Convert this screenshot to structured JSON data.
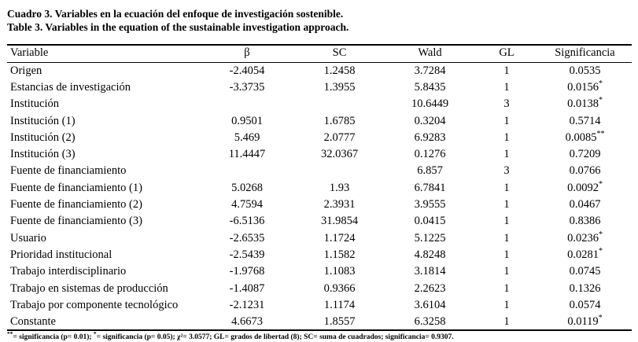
{
  "captions": {
    "spanish": "Cuadro 3. Variables en la ecuación del enfoque de investigación sostenible.",
    "english": "Table 3. Variables in the equation of the sustainable investigation approach."
  },
  "table": {
    "headers": {
      "variable": "Variable",
      "beta": "β",
      "sc": "SC",
      "wald": "Wald",
      "gl": "GL",
      "sig": "Significancia"
    },
    "rows": [
      {
        "variable": "Origen",
        "beta": "-2.4054",
        "sc": "1.2458",
        "wald": "3.7284",
        "gl": "1",
        "sig": "0.0535",
        "mark": ""
      },
      {
        "variable": "Estancias de investigación",
        "beta": "-3.3735",
        "sc": "1.3955",
        "wald": "5.8435",
        "gl": "1",
        "sig": "0.0156",
        "mark": "*"
      },
      {
        "variable": "Institución",
        "beta": "",
        "sc": "",
        "wald": "10.6449",
        "gl": "3",
        "sig": "0.0138",
        "mark": "*"
      },
      {
        "variable": "Institución (1)",
        "beta": "0.9501",
        "sc": "1.6785",
        "wald": "0.3204",
        "gl": "1",
        "sig": "0.5714",
        "mark": ""
      },
      {
        "variable": "Institución (2)",
        "beta": "5.469",
        "sc": "2.0777",
        "wald": "6.9283",
        "gl": "1",
        "sig": "0.0085",
        "mark": "**"
      },
      {
        "variable": "Institución (3)",
        "beta": "11.4447",
        "sc": "32.0367",
        "wald": "0.1276",
        "gl": "1",
        "sig": "0.7209",
        "mark": ""
      },
      {
        "variable": "Fuente de financiamiento",
        "beta": "",
        "sc": "",
        "wald": "6.857",
        "gl": "3",
        "sig": "0.0766",
        "mark": ""
      },
      {
        "variable": "Fuente de financiamiento (1)",
        "beta": "5.0268",
        "sc": "1.93",
        "wald": "6.7841",
        "gl": "1",
        "sig": "0.0092",
        "mark": "*"
      },
      {
        "variable": "Fuente de financiamiento (2)",
        "beta": "4.7594",
        "sc": "2.3931",
        "wald": "3.9555",
        "gl": "1",
        "sig": "0.0467",
        "mark": ""
      },
      {
        "variable": "Fuente de financiamiento (3)",
        "beta": "-6.5136",
        "sc": "31.9854",
        "wald": "0.0415",
        "gl": "1",
        "sig": "0.8386",
        "mark": ""
      },
      {
        "variable": "Usuario",
        "beta": "-2.6535",
        "sc": "1.1724",
        "wald": "5.1225",
        "gl": "1",
        "sig": "0.0236",
        "mark": "*"
      },
      {
        "variable": "Prioridad institucional",
        "beta": "-2.5439",
        "sc": "1.1582",
        "wald": "4.8248",
        "gl": "1",
        "sig": "0.0281",
        "mark": "*"
      },
      {
        "variable": "Trabajo interdisciplinario",
        "beta": "-1.9768",
        "sc": "1.1083",
        "wald": "3.1814",
        "gl": "1",
        "sig": "0.0745",
        "mark": ""
      },
      {
        "variable": "Trabajo en sistemas de producción",
        "beta": "-1.4087",
        "sc": "0.9366",
        "wald": "2.2623",
        "gl": "1",
        "sig": "0.1326",
        "mark": ""
      },
      {
        "variable": "Trabajo por componente tecnológico",
        "beta": "-2.1231",
        "sc": "1.1174",
        "wald": "3.6104",
        "gl": "1",
        "sig": "0.0574",
        "mark": ""
      },
      {
        "variable": "Constante",
        "beta": "4.6673",
        "sc": "1.8557",
        "wald": "6.3258",
        "gl": "1",
        "sig": "0.0119",
        "mark": "*"
      }
    ]
  },
  "footnote": {
    "mark1": "**",
    "seg1": "= significancia (p= 0.01); ",
    "mark2": "*",
    "seg2": "= significancia (p= 0.05); χ²= 3.0577; GL= grados de libertad (8); SC= suma de cuadrados; significancia= 0.9307."
  }
}
